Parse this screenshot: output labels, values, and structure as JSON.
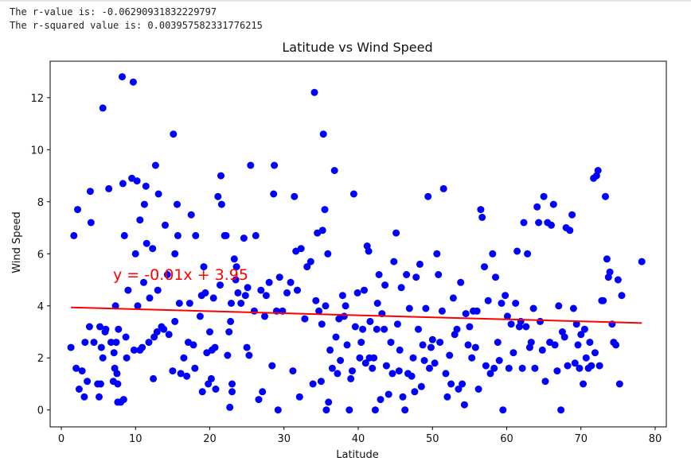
{
  "output": {
    "r_value_line": "The r-value is: -0.06290931832229797",
    "r_squared_line": "The r-squared value is: 0.003957582331776215"
  },
  "colors": {
    "points": "#0000ff",
    "regression": "#ff0000",
    "annotation": "#ff0000"
  },
  "chart_data": {
    "type": "scatter",
    "title": "Latitude vs Wind Speed",
    "xlabel": "Latitude",
    "ylabel": "Wind Speed",
    "xlim": [
      -1.5,
      81.5
    ],
    "ylim": [
      -0.65,
      13.4
    ],
    "xticks": [
      0,
      10,
      20,
      30,
      40,
      50,
      60,
      70,
      80
    ],
    "yticks": [
      0,
      2,
      4,
      6,
      8,
      10,
      12
    ],
    "grid": false,
    "annotation": "y = -0.01x + 3.95",
    "regression": {
      "slope": -0.0078,
      "intercept": 3.95,
      "x_range": [
        1.3,
        78.2
      ]
    },
    "points": [
      [
        1.3,
        2.4
      ],
      [
        1.7,
        6.7
      ],
      [
        2,
        1.6
      ],
      [
        2.2,
        7.7
      ],
      [
        2.4,
        0.8
      ],
      [
        2.8,
        1.5
      ],
      [
        3.1,
        0.5
      ],
      [
        3.2,
        2.6
      ],
      [
        3.5,
        1.1
      ],
      [
        3.8,
        3.2
      ],
      [
        3.9,
        8.4
      ],
      [
        4,
        7.2
      ],
      [
        4.4,
        2.6
      ],
      [
        4.9,
        1.0
      ],
      [
        5.1,
        0.5
      ],
      [
        5.2,
        3.2
      ],
      [
        5.3,
        1.0
      ],
      [
        5.4,
        2.4
      ],
      [
        5.6,
        2.0
      ],
      [
        5.6,
        11.6
      ],
      [
        5.9,
        3.0
      ],
      [
        6,
        3.1
      ],
      [
        6.4,
        8.5
      ],
      [
        6.7,
        2.6
      ],
      [
        7,
        1.1
      ],
      [
        7.1,
        2.2
      ],
      [
        7.2,
        1.6
      ],
      [
        7.3,
        4.0
      ],
      [
        7.4,
        2.6
      ],
      [
        7.5,
        1.4
      ],
      [
        7.6,
        0.3
      ],
      [
        7.6,
        1.0
      ],
      [
        7.7,
        3.1
      ],
      [
        8,
        0.3
      ],
      [
        8.2,
        12.8
      ],
      [
        8.3,
        8.7
      ],
      [
        8.4,
        0.4
      ],
      [
        8.5,
        6.7
      ],
      [
        8.7,
        2.8
      ],
      [
        8.8,
        2.0
      ],
      [
        9,
        4.6
      ],
      [
        9.5,
        8.9
      ],
      [
        9.7,
        12.6
      ],
      [
        9.8,
        2.3
      ],
      [
        10,
        6.0
      ],
      [
        10.2,
        8.8
      ],
      [
        10.3,
        4.0
      ],
      [
        10.6,
        2.3
      ],
      [
        10.6,
        7.3
      ],
      [
        10.9,
        2.4
      ],
      [
        11.1,
        4.9
      ],
      [
        11.2,
        7.9
      ],
      [
        11.4,
        8.6
      ],
      [
        11.5,
        6.4
      ],
      [
        11.8,
        2.6
      ],
      [
        11.9,
        4.3
      ],
      [
        12.3,
        6.2
      ],
      [
        12.4,
        1.2
      ],
      [
        12.5,
        2.8
      ],
      [
        12.7,
        9.4
      ],
      [
        12.9,
        3.0
      ],
      [
        13,
        4.6
      ],
      [
        13.1,
        8.3
      ],
      [
        13.5,
        3.2
      ],
      [
        13.8,
        3.1
      ],
      [
        14,
        7.1
      ],
      [
        14.3,
        5.2
      ],
      [
        14.5,
        2.9
      ],
      [
        15,
        1.5
      ],
      [
        15.1,
        10.6
      ],
      [
        15.3,
        3.4
      ],
      [
        15.3,
        6.0
      ],
      [
        15.6,
        7.9
      ],
      [
        15.7,
        6.7
      ],
      [
        15.9,
        4.1
      ],
      [
        16.1,
        1.4
      ],
      [
        16.5,
        2.0
      ],
      [
        16.9,
        1.3
      ],
      [
        17.1,
        2.6
      ],
      [
        17.3,
        4.1
      ],
      [
        17.5,
        7.5
      ],
      [
        17.8,
        2.5
      ],
      [
        18,
        1.6
      ],
      [
        18.1,
        6.7
      ],
      [
        18.7,
        3.6
      ],
      [
        18.9,
        4.4
      ],
      [
        19,
        0.7
      ],
      [
        19.2,
        5.5
      ],
      [
        19.4,
        4.5
      ],
      [
        19.6,
        2.2
      ],
      [
        19.8,
        1.0
      ],
      [
        20,
        3.0
      ],
      [
        20.2,
        1.2
      ],
      [
        20.3,
        2.3
      ],
      [
        20.5,
        4.3
      ],
      [
        20.7,
        2.4
      ],
      [
        20.8,
        0.8
      ],
      [
        21.1,
        8.2
      ],
      [
        21.4,
        4.8
      ],
      [
        21.5,
        9.0
      ],
      [
        21.6,
        7.9
      ],
      [
        22,
        6.7
      ],
      [
        22.2,
        6.7
      ],
      [
        22.4,
        2.1
      ],
      [
        22.6,
        3.0
      ],
      [
        22.7,
        0.1
      ],
      [
        22.8,
        3.4
      ],
      [
        22.9,
        4.1
      ],
      [
        23,
        0.7
      ],
      [
        23,
        1.0
      ],
      [
        23.3,
        5.8
      ],
      [
        23.5,
        5.0
      ],
      [
        23.6,
        5.5
      ],
      [
        23.8,
        4.5
      ],
      [
        24.2,
        4.1
      ],
      [
        24.6,
        6.6
      ],
      [
        24.8,
        4.4
      ],
      [
        25,
        2.4
      ],
      [
        25.1,
        4.7
      ],
      [
        25.3,
        2.1
      ],
      [
        25.5,
        9.4
      ],
      [
        26,
        3.8
      ],
      [
        26.2,
        6.7
      ],
      [
        26.6,
        0.4
      ],
      [
        26.9,
        4.6
      ],
      [
        27.1,
        0.7
      ],
      [
        27.4,
        3.6
      ],
      [
        27.6,
        4.4
      ],
      [
        28,
        4.9
      ],
      [
        28.4,
        1.7
      ],
      [
        28.6,
        8.3
      ],
      [
        28.7,
        9.4
      ],
      [
        29,
        3.8
      ],
      [
        29.2,
        0.0
      ],
      [
        29.4,
        5.1
      ],
      [
        29.8,
        3.8
      ],
      [
        30.4,
        4.5
      ],
      [
        30.9,
        4.9
      ],
      [
        31.2,
        1.5
      ],
      [
        31.4,
        8.2
      ],
      [
        31.6,
        6.1
      ],
      [
        31.8,
        4.6
      ],
      [
        32.1,
        0.5
      ],
      [
        32.3,
        6.2
      ],
      [
        32.8,
        3.5
      ],
      [
        33.1,
        5.5
      ],
      [
        33.6,
        5.7
      ],
      [
        33.9,
        1.0
      ],
      [
        34.1,
        12.2
      ],
      [
        34.3,
        4.2
      ],
      [
        34.5,
        6.8
      ],
      [
        34.7,
        3.8
      ],
      [
        35,
        1.1
      ],
      [
        35.1,
        3.3
      ],
      [
        35.2,
        6.9
      ],
      [
        35.3,
        10.6
      ],
      [
        35.5,
        7.7
      ],
      [
        35.6,
        4.0
      ],
      [
        35.7,
        0.0
      ],
      [
        35.9,
        6.0
      ],
      [
        36,
        0.3
      ],
      [
        36.2,
        2.3
      ],
      [
        36.5,
        1.6
      ],
      [
        36.8,
        9.2
      ],
      [
        37,
        2.8
      ],
      [
        37.2,
        1.4
      ],
      [
        37.4,
        3.5
      ],
      [
        37.6,
        1.9
      ],
      [
        37.9,
        4.4
      ],
      [
        38.1,
        3.6
      ],
      [
        38.3,
        4.0
      ],
      [
        38.5,
        2.5
      ],
      [
        38.8,
        0.0
      ],
      [
        39,
        1.2
      ],
      [
        39.2,
        1.5
      ],
      [
        39.4,
        8.3
      ],
      [
        39.6,
        3.2
      ],
      [
        39.9,
        4.5
      ],
      [
        40.2,
        2.0
      ],
      [
        40.4,
        2.6
      ],
      [
        40.6,
        3.1
      ],
      [
        40.8,
        4.6
      ],
      [
        41,
        1.8
      ],
      [
        41.2,
        6.3
      ],
      [
        41.4,
        6.1
      ],
      [
        41.5,
        2.0
      ],
      [
        41.6,
        3.4
      ],
      [
        41.9,
        1.6
      ],
      [
        42.1,
        2.0
      ],
      [
        42.3,
        0.0
      ],
      [
        42.5,
        3.1
      ],
      [
        42.6,
        4.1
      ],
      [
        42.8,
        5.2
      ],
      [
        43,
        0.4
      ],
      [
        43.2,
        3.7
      ],
      [
        43.5,
        3.1
      ],
      [
        43.6,
        4.8
      ],
      [
        43.8,
        1.7
      ],
      [
        44.1,
        0.6
      ],
      [
        44.4,
        2.6
      ],
      [
        44.6,
        1.4
      ],
      [
        44.8,
        5.7
      ],
      [
        45.1,
        6.8
      ],
      [
        45.3,
        3.3
      ],
      [
        45.5,
        1.5
      ],
      [
        45.6,
        2.3
      ],
      [
        45.8,
        4.7
      ],
      [
        46,
        0.5
      ],
      [
        46.3,
        0.0
      ],
      [
        46.5,
        5.2
      ],
      [
        46.7,
        1.4
      ],
      [
        46.9,
        3.9
      ],
      [
        47.2,
        1.3
      ],
      [
        47.4,
        2.0
      ],
      [
        47.6,
        0.7
      ],
      [
        47.8,
        5.1
      ],
      [
        48.1,
        3.1
      ],
      [
        48.3,
        5.6
      ],
      [
        48.5,
        0.9
      ],
      [
        48.7,
        2.5
      ],
      [
        48.9,
        1.9
      ],
      [
        49.1,
        3.9
      ],
      [
        49.4,
        8.2
      ],
      [
        49.6,
        1.6
      ],
      [
        49.8,
        2.4
      ],
      [
        50,
        2.7
      ],
      [
        50.3,
        1.8
      ],
      [
        50.6,
        6.0
      ],
      [
        50.8,
        5.2
      ],
      [
        51,
        2.6
      ],
      [
        51.3,
        3.8
      ],
      [
        51.5,
        8.5
      ],
      [
        51.8,
        1.4
      ],
      [
        52,
        0.5
      ],
      [
        52.3,
        2.1
      ],
      [
        52.5,
        1.0
      ],
      [
        52.8,
        4.3
      ],
      [
        53,
        2.9
      ],
      [
        53.3,
        3.1
      ],
      [
        53.5,
        0.8
      ],
      [
        53.8,
        4.9
      ],
      [
        54,
        1.0
      ],
      [
        54.3,
        0.2
      ],
      [
        54.5,
        3.7
      ],
      [
        54.8,
        2.5
      ],
      [
        55,
        3.2
      ],
      [
        55.3,
        2.0
      ],
      [
        55.5,
        3.8
      ],
      [
        55.8,
        2.4
      ],
      [
        56,
        3.8
      ],
      [
        56.2,
        0.8
      ],
      [
        56.5,
        7.7
      ],
      [
        56.7,
        7.4
      ],
      [
        57,
        5.5
      ],
      [
        57.2,
        1.7
      ],
      [
        57.5,
        4.2
      ],
      [
        57.8,
        1.4
      ],
      [
        58.1,
        6.0
      ],
      [
        58.3,
        1.6
      ],
      [
        58.5,
        5.1
      ],
      [
        58.8,
        2.6
      ],
      [
        59,
        1.9
      ],
      [
        59.3,
        4.1
      ],
      [
        59.5,
        0.0
      ],
      [
        59.8,
        4.4
      ],
      [
        60.1,
        3.6
      ],
      [
        60.3,
        1.6
      ],
      [
        60.6,
        3.3
      ],
      [
        60.9,
        2.2
      ],
      [
        61.2,
        4.1
      ],
      [
        61.4,
        6.1
      ],
      [
        61.7,
        3.2
      ],
      [
        61.9,
        3.4
      ],
      [
        62.1,
        1.6
      ],
      [
        62.3,
        7.2
      ],
      [
        62.6,
        3.2
      ],
      [
        62.8,
        6.0
      ],
      [
        63.1,
        2.4
      ],
      [
        63.3,
        2.6
      ],
      [
        63.6,
        3.9
      ],
      [
        63.8,
        1.6
      ],
      [
        64.1,
        7.8
      ],
      [
        64.3,
        7.2
      ],
      [
        64.5,
        3.4
      ],
      [
        64.8,
        2.3
      ],
      [
        65,
        8.2
      ],
      [
        65.2,
        1.1
      ],
      [
        65.5,
        7.2
      ],
      [
        65.8,
        2.6
      ],
      [
        66,
        7.1
      ],
      [
        66.3,
        7.9
      ],
      [
        66.5,
        2.5
      ],
      [
        66.8,
        1.5
      ],
      [
        67,
        4.0
      ],
      [
        67.3,
        0.0
      ],
      [
        67.5,
        3.0
      ],
      [
        67.8,
        2.8
      ],
      [
        68,
        7.0
      ],
      [
        68.2,
        1.7
      ],
      [
        68.5,
        6.9
      ],
      [
        68.8,
        7.5
      ],
      [
        69,
        3.9
      ],
      [
        69.2,
        1.8
      ],
      [
        69.4,
        3.3
      ],
      [
        69.6,
        2.5
      ],
      [
        69.8,
        1.6
      ],
      [
        70,
        2.9
      ],
      [
        70.3,
        1.0
      ],
      [
        70.5,
        3.1
      ],
      [
        70.7,
        2.0
      ],
      [
        71,
        1.6
      ],
      [
        71.2,
        2.6
      ],
      [
        71.4,
        1.7
      ],
      [
        71.7,
        8.9
      ],
      [
        71.9,
        2.2
      ],
      [
        72.1,
        9.0
      ],
      [
        72.3,
        9.2
      ],
      [
        72.5,
        1.7
      ],
      [
        72.8,
        4.2
      ],
      [
        73,
        4.2
      ],
      [
        73.3,
        8.2
      ],
      [
        73.5,
        5.8
      ],
      [
        73.7,
        5.1
      ],
      [
        73.9,
        5.3
      ],
      [
        74.2,
        3.3
      ],
      [
        74.4,
        2.6
      ],
      [
        74.7,
        2.5
      ],
      [
        75,
        5.0
      ],
      [
        75.2,
        1.0
      ],
      [
        75.5,
        4.4
      ],
      [
        78.2,
        5.7
      ]
    ]
  }
}
